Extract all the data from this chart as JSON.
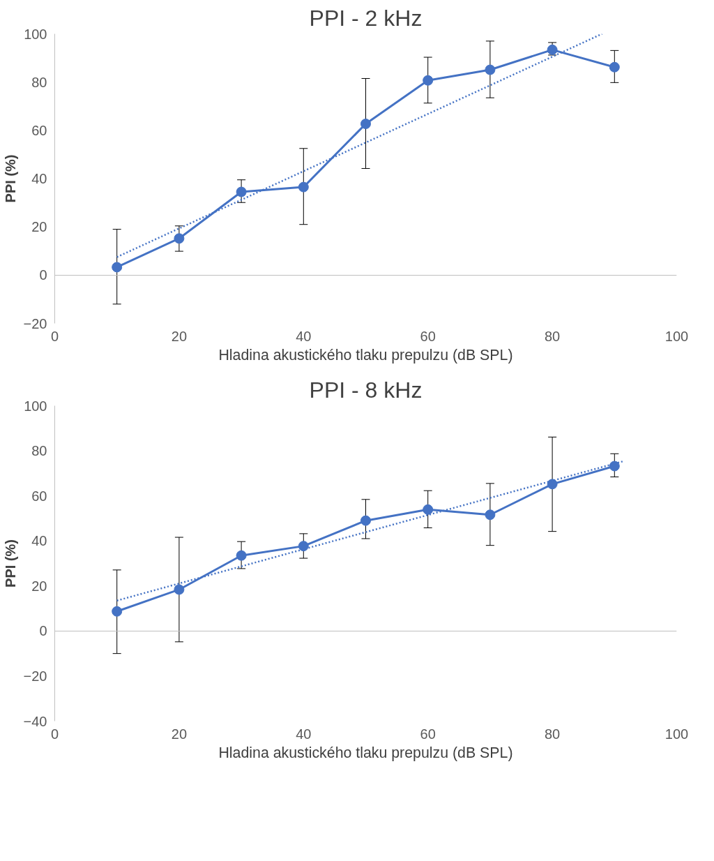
{
  "chart_data": [
    {
      "type": "line",
      "title": "PPI - 2 kHz",
      "xlabel": "Hladina akustického tlaku prepulzu (dB SPL)",
      "ylabel": "PPI (%)",
      "xlim": [
        0,
        100
      ],
      "xticks": [
        0,
        20,
        40,
        60,
        80,
        100
      ],
      "ylim": [
        -20,
        100
      ],
      "yticks": [
        -20,
        0,
        20,
        40,
        60,
        80,
        100
      ],
      "series": [
        {
          "color": "#4472c4",
          "marker": "circle",
          "line_style": "solid",
          "x": [
            10,
            20,
            30,
            40,
            50,
            60,
            70,
            80,
            90
          ],
          "values": [
            3.3,
            15.2,
            34.5,
            36.5,
            62.7,
            80.7,
            85.1,
            93.4,
            86.2
          ],
          "errors": [
            [
              -12,
              19
            ],
            [
              9.9,
              20.4
            ],
            [
              30.1,
              39.5
            ],
            [
              21,
              52.5
            ],
            [
              44.2,
              81.5
            ],
            [
              71.3,
              90.3
            ],
            [
              73.5,
              97
            ],
            [
              91.2,
              96.4
            ],
            [
              79.8,
              93.1
            ]
          ]
        },
        {
          "color": "#4472c4",
          "marker": "none",
          "line_style": "dotted",
          "x": [
            10,
            88
          ],
          "values": [
            7.5,
            100
          ]
        }
      ]
    },
    {
      "type": "line",
      "title": "PPI - 8 kHz",
      "xlabel": "Hladina akustického tlaku prepulzu (dB SPL)",
      "ylabel": "PPI (%)",
      "xlim": [
        0,
        100
      ],
      "xticks": [
        0,
        20,
        40,
        60,
        80,
        100
      ],
      "ylim": [
        -40,
        100
      ],
      "yticks": [
        -40,
        -20,
        0,
        20,
        40,
        60,
        80,
        100
      ],
      "series": [
        {
          "color": "#4472c4",
          "marker": "circle",
          "line_style": "solid",
          "x": [
            10,
            20,
            30,
            40,
            50,
            60,
            70,
            80,
            90
          ],
          "values": [
            8.7,
            18.4,
            33.5,
            37.7,
            49,
            53.9,
            51.6,
            65.2,
            73.2
          ],
          "errors": [
            [
              -10,
              27.1
            ],
            [
              -4.8,
              41.6
            ],
            [
              27.7,
              39.7
            ],
            [
              32.3,
              43.2
            ],
            [
              41,
              58.4
            ],
            [
              45.8,
              62.3
            ],
            [
              38,
              65.5
            ],
            [
              44.2,
              86.1
            ],
            [
              68.4,
              78.7
            ]
          ]
        },
        {
          "color": "#4472c4",
          "marker": "none",
          "line_style": "dotted",
          "x": [
            10,
            91.6
          ],
          "values": [
            13.5,
            75.5
          ]
        }
      ]
    }
  ]
}
